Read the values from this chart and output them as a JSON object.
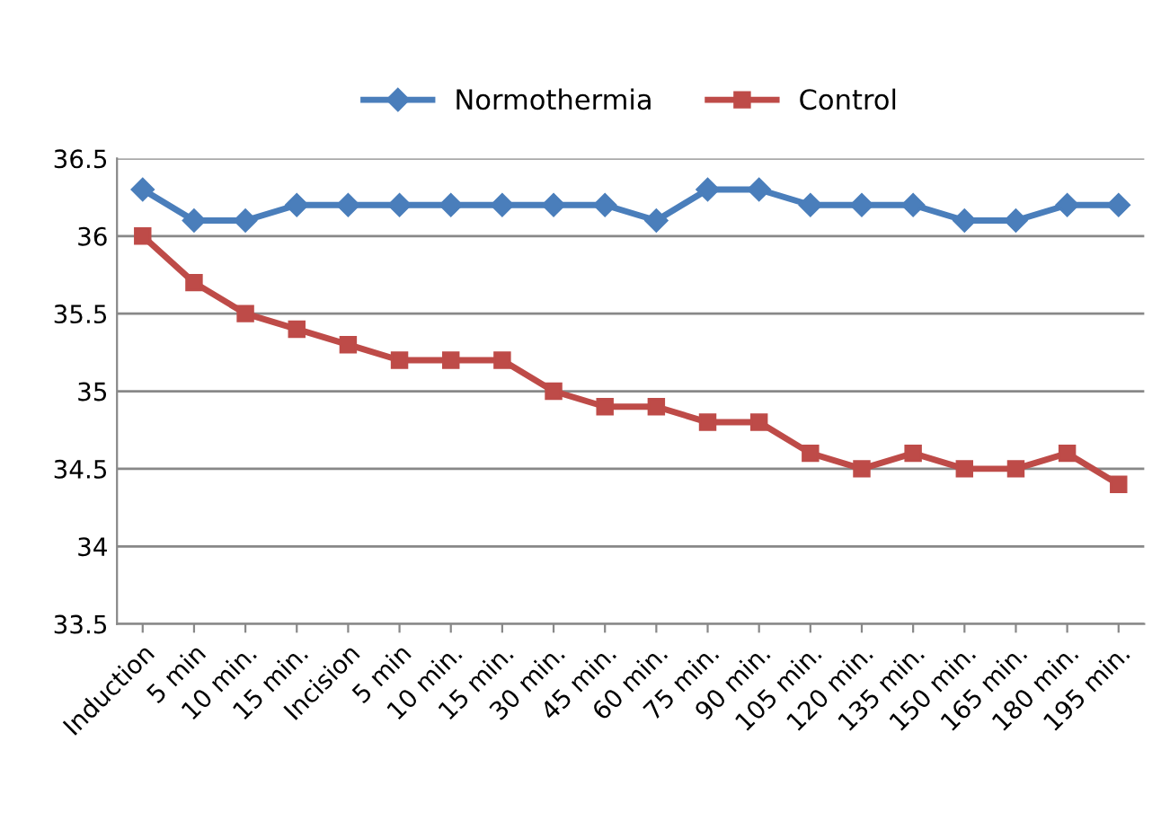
{
  "chart_data": {
    "type": "line",
    "categories": [
      "Induction",
      "5 min",
      "10 min.",
      "15 min.",
      "Incision",
      "5 min",
      "10 min.",
      "15 min.",
      "30 min.",
      "45 min.",
      "60 min.",
      "75 min.",
      "90 min.",
      "105 min.",
      "120 min.",
      "135 min.",
      "150 min.",
      "165 min.",
      "180 min.",
      "195 min."
    ],
    "series": [
      {
        "name": "Normothermia",
        "color": "#4a7ebb",
        "marker": "diamond",
        "values": [
          36.3,
          36.1,
          36.1,
          36.2,
          36.2,
          36.2,
          36.2,
          36.2,
          36.2,
          36.2,
          36.1,
          36.3,
          36.3,
          36.2,
          36.2,
          36.2,
          36.1,
          36.1,
          36.2,
          36.2
        ]
      },
      {
        "name": "Control",
        "color": "#be4b48",
        "marker": "square",
        "values": [
          36.0,
          35.7,
          35.5,
          35.4,
          35.3,
          35.2,
          35.2,
          35.2,
          35.0,
          34.9,
          34.9,
          34.8,
          34.8,
          34.6,
          34.5,
          34.6,
          34.5,
          34.5,
          34.6,
          34.4
        ]
      }
    ],
    "ylim": [
      33.5,
      36.5
    ],
    "yticks": [
      33.5,
      34,
      34.5,
      35,
      35.5,
      36,
      36.5
    ],
    "grid": "y",
    "legend": "top",
    "line_style": "solid"
  }
}
